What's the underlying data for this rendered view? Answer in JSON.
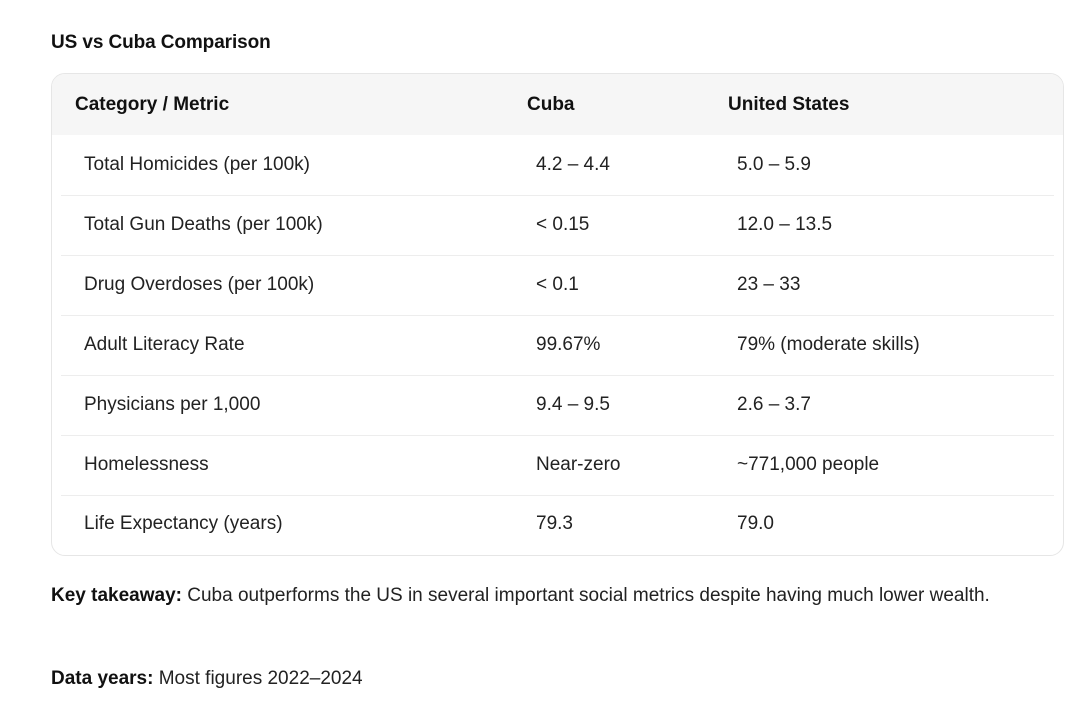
{
  "title": "US vs Cuba Comparison",
  "table": {
    "headers": [
      "Category / Metric",
      "Cuba",
      "United States"
    ],
    "rows": [
      [
        "Total Homicides (per 100k)",
        "4.2 – 4.4",
        "5.0 – 5.9"
      ],
      [
        "Total Gun Deaths (per 100k)",
        "< 0.15",
        "12.0 – 13.5"
      ],
      [
        "Drug Overdoses (per 100k)",
        "< 0.1",
        "23 – 33"
      ],
      [
        "Adult Literacy Rate",
        "99.67%",
        "79% (moderate skills)"
      ],
      [
        "Physicians per 1,000",
        "9.4 – 9.5",
        "2.6 – 3.7"
      ],
      [
        "Homelessness",
        "Near-zero",
        "~771,000 people"
      ],
      [
        "Life Expectancy (years)",
        "79.3",
        "79.0"
      ]
    ]
  },
  "takeaway": {
    "label": "Key takeaway:",
    "text": " Cuba outperforms the US in several important social metrics despite having much lower wealth."
  },
  "data_years": {
    "label": "Data years:",
    "text": " Most figures 2022–2024"
  }
}
